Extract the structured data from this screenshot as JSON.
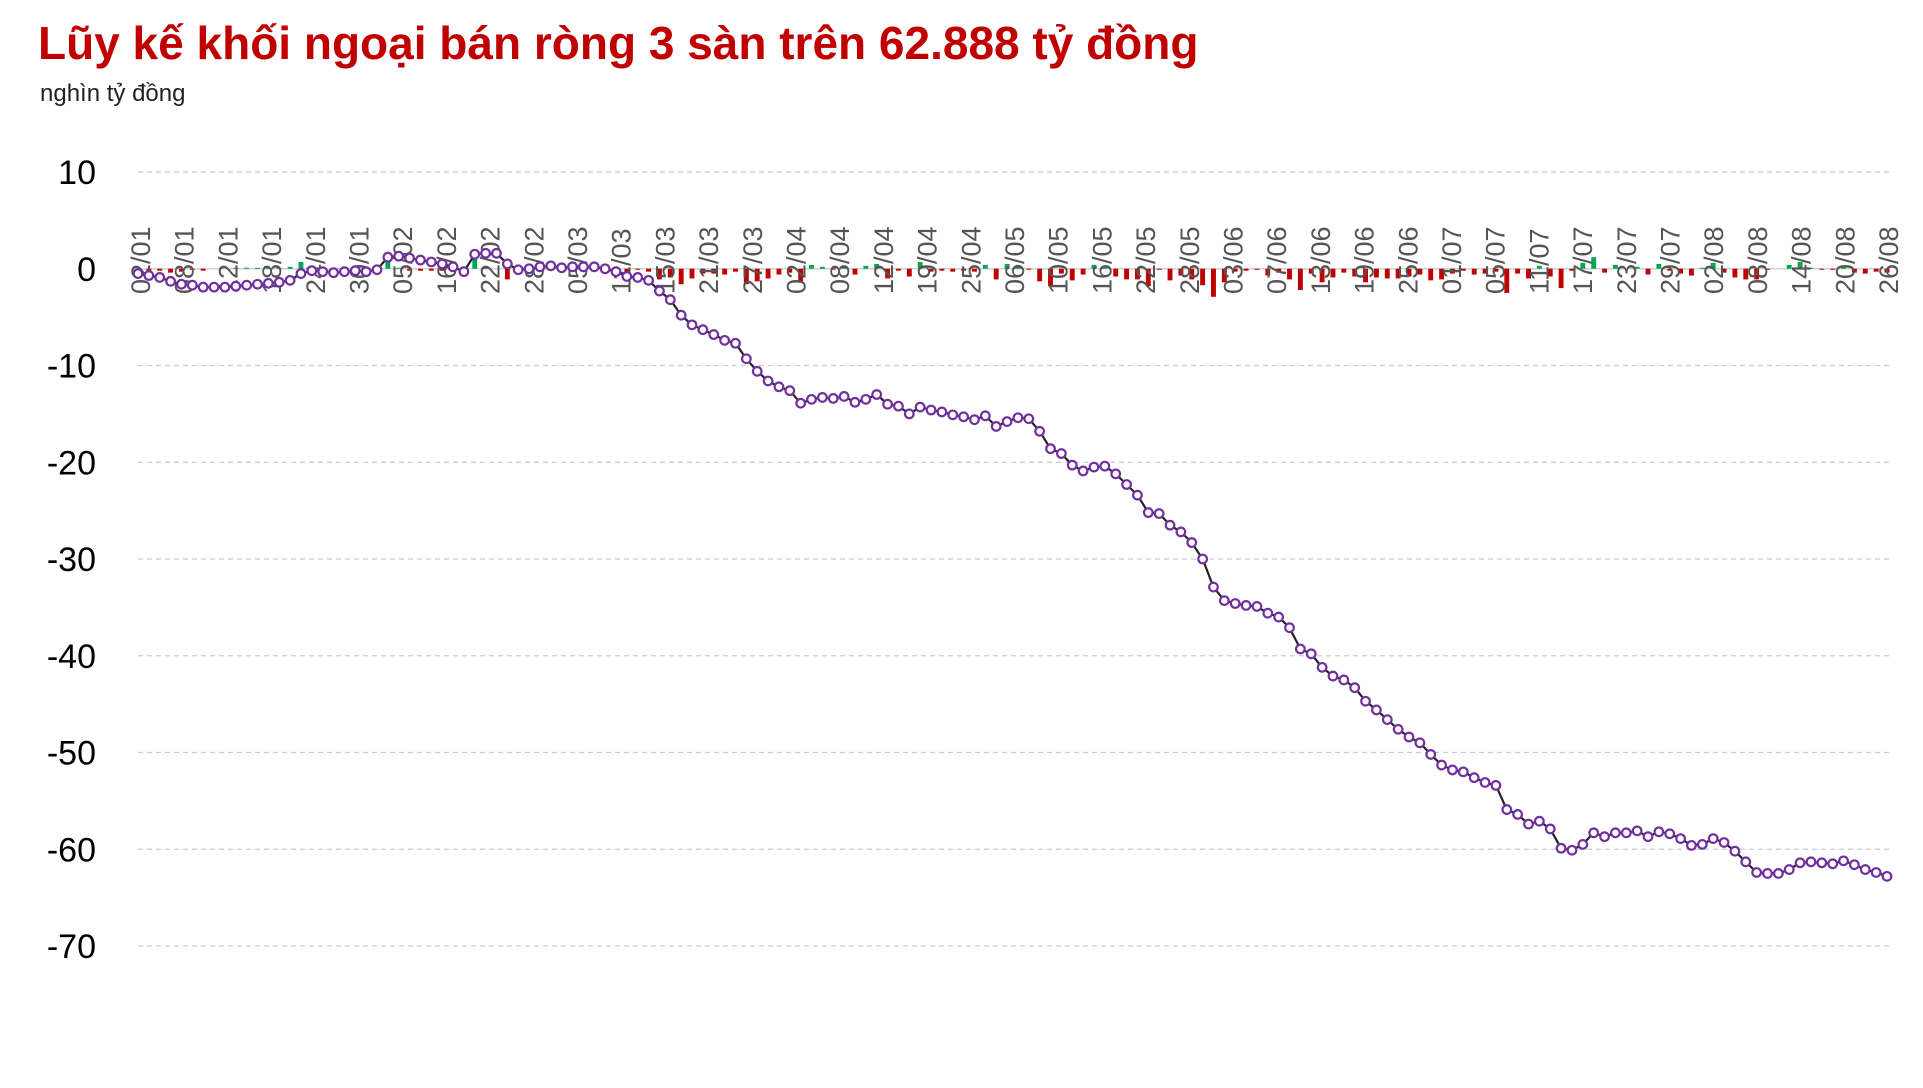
{
  "title": "Lũy kế khối ngoại bán ròng 3 sàn trên 62.888 tỷ đồng",
  "unit_label": "nghìn tỷ đồng",
  "colors": {
    "title": "#c00000",
    "line": "#222222",
    "marker": "#7030a0",
    "buy_bar": "#00a651",
    "sell_bar": "#c00000",
    "grid": "#cccccc"
  },
  "chart_data": {
    "type": "line",
    "title": "Lũy kế khối ngoại bán ròng 3 sàn trên 62.888 tỷ đồng",
    "ylabel": "nghìn tỷ đồng",
    "xlabel": "",
    "ylim": [
      -70,
      10
    ],
    "yticks": [
      10,
      0,
      -10,
      -20,
      -30,
      -40,
      -50,
      -60,
      -70
    ],
    "grid": true,
    "x_tick_labels": [
      "02/01",
      "08/01",
      "12/01",
      "18/01",
      "24/01",
      "30/01",
      "05/02",
      "16/02",
      "22/02",
      "28/02",
      "05/03",
      "11/03",
      "15/03",
      "21/03",
      "27/03",
      "02/04",
      "08/04",
      "12/04",
      "19/04",
      "25/04",
      "06/05",
      "10/05",
      "16/05",
      "22/05",
      "28/05",
      "03/06",
      "07/06",
      "13/06",
      "19/06",
      "25/06",
      "01/07",
      "05/07",
      "11/07",
      "17/07",
      "23/07",
      "29/07",
      "02/08",
      "08/08",
      "14/08",
      "20/08",
      "26/08"
    ],
    "series": [
      {
        "kind": "line",
        "values": [
          -0.5,
          -0.7,
          -0.9,
          -1.3,
          -1.6,
          -1.7,
          -1.9,
          -1.9,
          -1.9,
          -1.8,
          -1.7,
          -1.6,
          -1.5,
          -1.4,
          -1.2,
          -0.5,
          -0.2,
          -0.3,
          -0.4,
          -0.3,
          -0.2,
          -0.3,
          -0.1,
          1.2,
          1.3,
          1.1,
          0.9,
          0.7,
          0.5,
          0.2,
          -0.3,
          1.5,
          1.6,
          1.6,
          0.5,
          -0.1,
          0.0,
          0.2,
          0.3,
          0.1,
          0.2,
          0.2,
          0.2,
          0.0,
          -0.3,
          -0.8,
          -0.9,
          -1.2,
          -2.3,
          -3.2,
          -4.8,
          -5.8,
          -6.3,
          -6.8,
          -7.4,
          -7.7,
          -9.3,
          -10.6,
          -11.6,
          -12.2,
          -12.6,
          -13.9,
          -13.5,
          -13.3,
          -13.4,
          -13.2,
          -13.8,
          -13.5,
          -13.0,
          -14.0,
          -14.2,
          -15.0,
          -14.3,
          -14.6,
          -14.8,
          -15.1,
          -15.3,
          -15.6,
          -15.2,
          -16.3,
          -15.8,
          -15.4,
          -15.5,
          -16.8,
          -18.6,
          -19.1,
          -20.3,
          -20.9,
          -20.5,
          -20.4,
          -21.2,
          -22.3,
          -23.4,
          -25.2,
          -25.3,
          -26.5,
          -27.2,
          -28.3,
          -30.0,
          -32.9,
          -34.3,
          -34.6,
          -34.8,
          -34.9,
          -35.6,
          -36.0,
          -37.1,
          -39.3,
          -39.8,
          -41.2,
          -42.1,
          -42.5,
          -43.3,
          -44.7,
          -45.6,
          -46.6,
          -47.6,
          -48.4,
          -49.0,
          -50.2,
          -51.3,
          -51.8,
          -52.0,
          -52.6,
          -53.1,
          -53.4,
          -55.9,
          -56.4,
          -57.4,
          -57.1,
          -57.9,
          -59.9,
          -60.1,
          -59.5,
          -58.3,
          -58.7,
          -58.3,
          -58.3,
          -58.1,
          -58.7,
          -58.2,
          -58.4,
          -58.9,
          -59.6,
          -59.5,
          -58.9,
          -59.3,
          -60.2,
          -61.3,
          -62.4,
          -62.5,
          -62.5,
          -62.1,
          -61.4,
          -61.3,
          -61.4,
          -61.5,
          -61.2,
          -61.6,
          -62.1,
          -62.4,
          -62.8
        ]
      },
      {
        "kind": "bar",
        "values": [
          -0.2,
          -0.2,
          -0.2,
          -0.4,
          -0.3,
          -0.1,
          -0.2,
          0,
          0,
          0.1,
          0.1,
          0.1,
          0.1,
          0.1,
          0.2,
          0.7,
          0.3,
          -0.1,
          -0.1,
          0.1,
          0.1,
          -0.1,
          0.2,
          1.3,
          0.1,
          -0.2,
          -0.2,
          -0.2,
          -0.2,
          -0.3,
          -0.5,
          1.8,
          0.1,
          0,
          -1.1,
          -0.6,
          0.1,
          0.2,
          0.1,
          -0.2,
          0.1,
          0,
          0,
          -0.2,
          -0.3,
          -0.5,
          -0.1,
          -0.3,
          -1.1,
          -0.9,
          -1.6,
          -1.0,
          -0.5,
          -0.5,
          -0.6,
          -0.3,
          -1.6,
          -1.3,
          -1.0,
          -0.6,
          -0.4,
          -1.3,
          0.4,
          0.2,
          -0.1,
          0.2,
          -0.6,
          0.3,
          0.5,
          -1.0,
          -0.2,
          -0.8,
          0.7,
          -0.3,
          -0.2,
          -0.3,
          -0.2,
          -0.3,
          0.4,
          -1.1,
          0.5,
          0.4,
          -0.1,
          -1.3,
          -1.8,
          -0.5,
          -1.2,
          -0.6,
          0.4,
          0.1,
          -0.8,
          -1.1,
          -1.1,
          -1.8,
          -0.1,
          -1.2,
          -0.7,
          -1.1,
          -1.7,
          -2.9,
          -1.4,
          -0.3,
          -0.2,
          -0.1,
          -0.7,
          -0.4,
          -1.1,
          -2.2,
          -0.5,
          -1.4,
          -0.9,
          -0.4,
          -0.8,
          -1.4,
          -0.9,
          -1.0,
          -1.0,
          -0.8,
          -0.6,
          -1.2,
          -1.1,
          -0.5,
          -0.2,
          -0.6,
          -0.5,
          -0.3,
          -2.5,
          -0.5,
          -1.0,
          0.3,
          -0.8,
          -2.0,
          -0.2,
          0.6,
          1.2,
          -0.4,
          0.4,
          0,
          0.2,
          -0.6,
          0.5,
          -0.2,
          -0.5,
          -0.7,
          0.1,
          0.6,
          -0.4,
          -0.9,
          -1.1,
          -1.1,
          -0.1,
          0,
          0.4,
          0.7,
          0.1,
          -0.1,
          -0.1,
          0.3,
          -0.4,
          -0.5,
          -0.3,
          -0.4
        ]
      }
    ]
  }
}
